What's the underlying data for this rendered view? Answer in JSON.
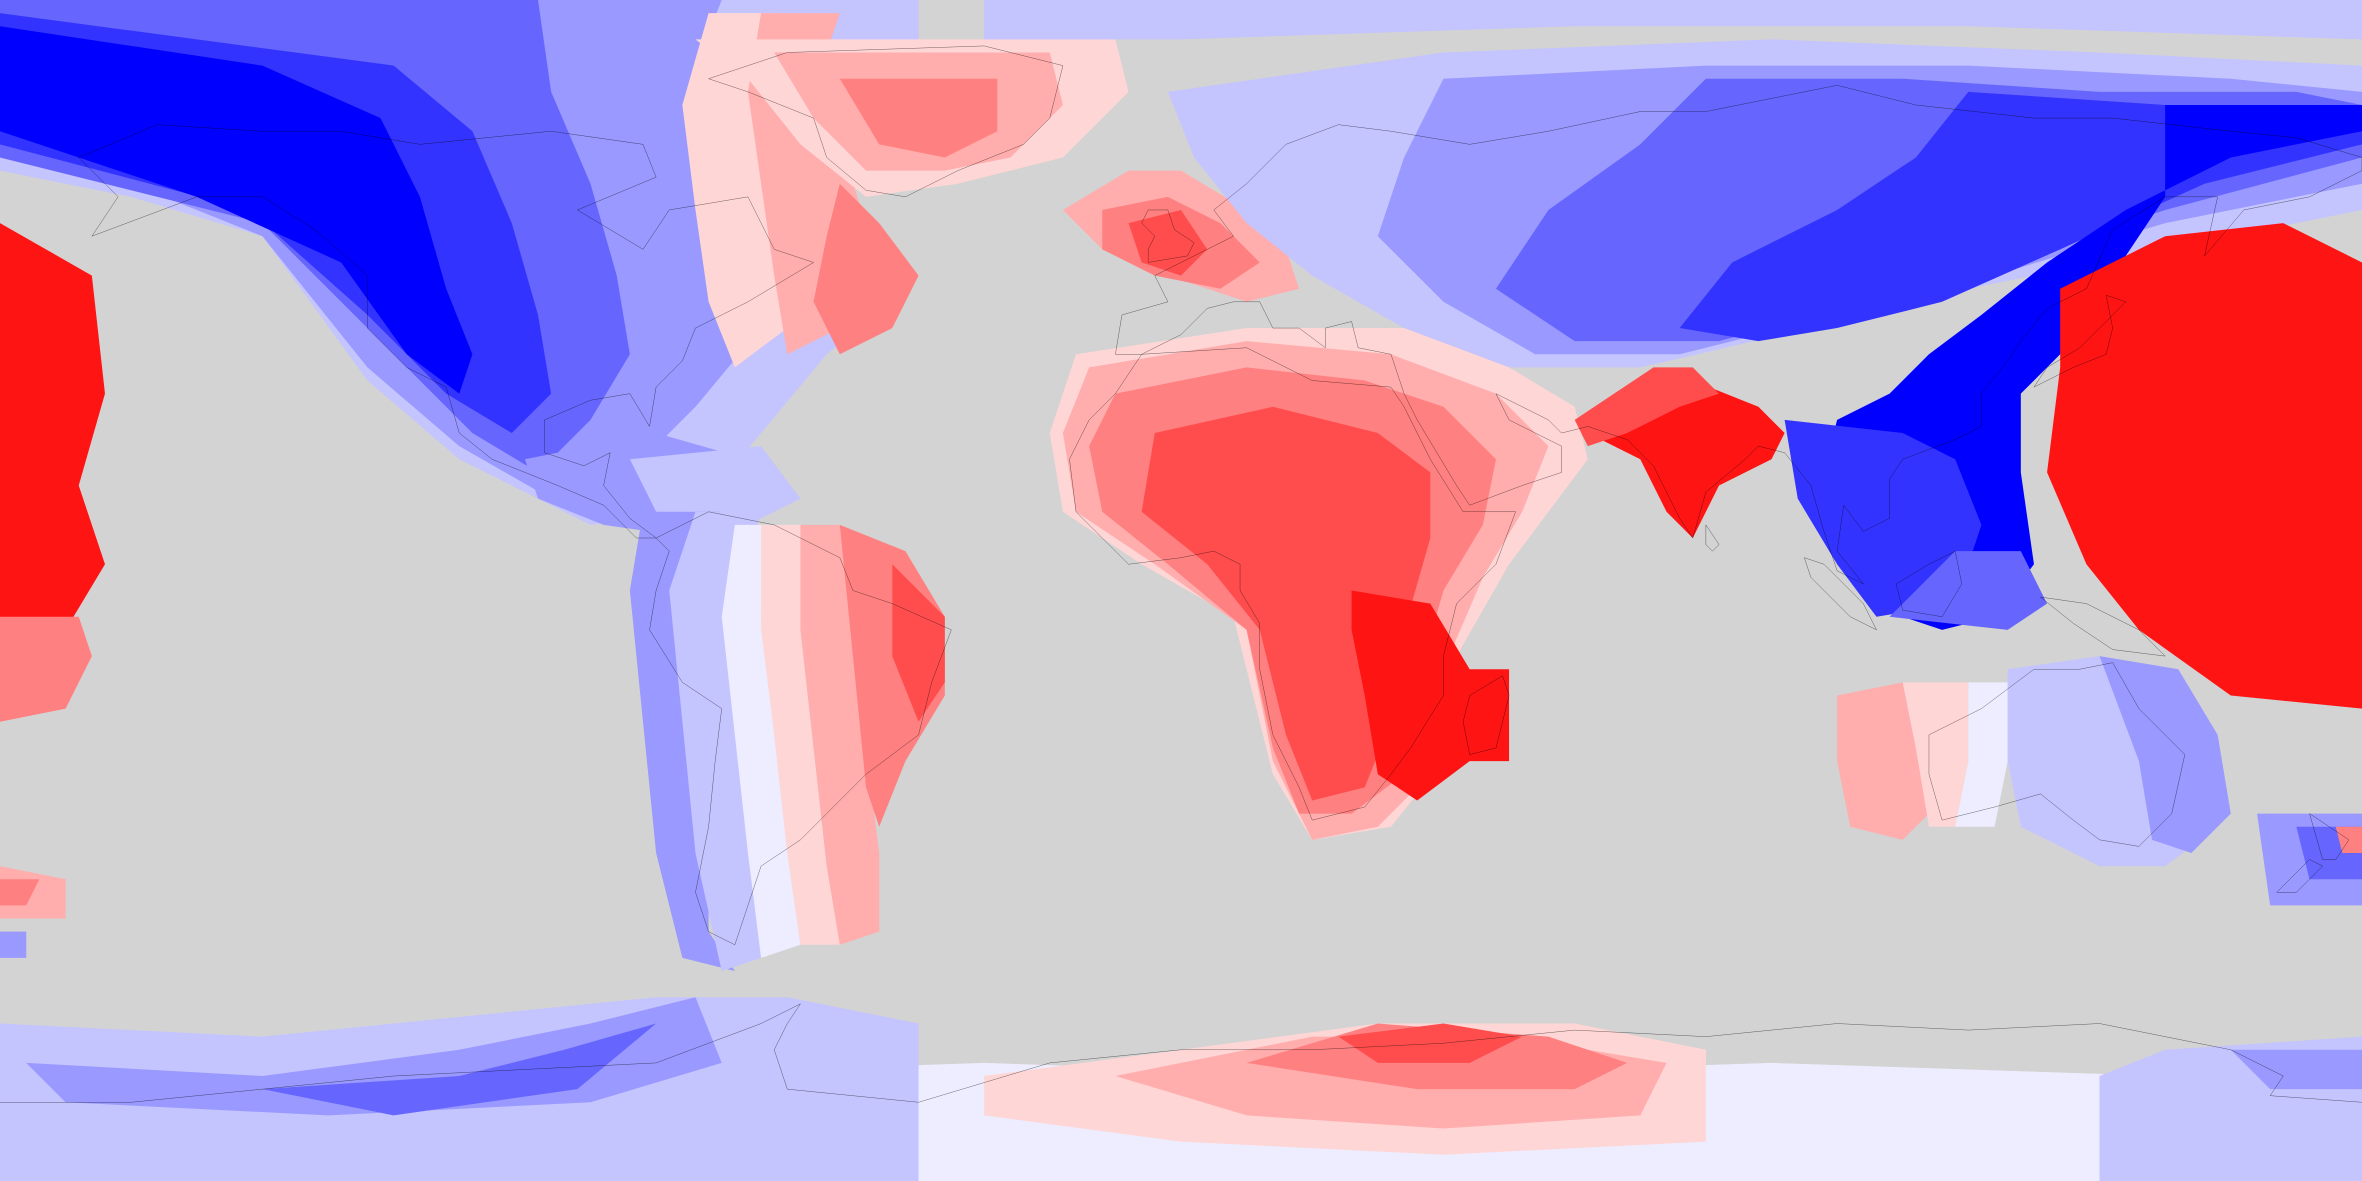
{
  "map": {
    "projection": "equirectangular",
    "extent": {
      "lon": [
        -180,
        180
      ],
      "lat": [
        -90,
        90
      ]
    },
    "background_color": "#d3d3d3",
    "coastline_color": "#000000",
    "color_scale": {
      "type": "diverging",
      "levels": [
        {
          "value": -5,
          "color": "#0000ff"
        },
        {
          "value": -4,
          "color": "#3333ff"
        },
        {
          "value": -3,
          "color": "#6666ff"
        },
        {
          "value": -2,
          "color": "#9999ff"
        },
        {
          "value": -1,
          "color": "#c4c4ff"
        },
        {
          "value": 0,
          "color": "#ededff"
        },
        {
          "value": 1,
          "color": "#ffd6d6"
        },
        {
          "value": 2,
          "color": "#ffadad"
        },
        {
          "value": 3,
          "color": "#ff8080"
        },
        {
          "value": 4,
          "color": "#ff4d4d"
        },
        {
          "value": 5,
          "color": "#ff1414"
        }
      ]
    }
  }
}
